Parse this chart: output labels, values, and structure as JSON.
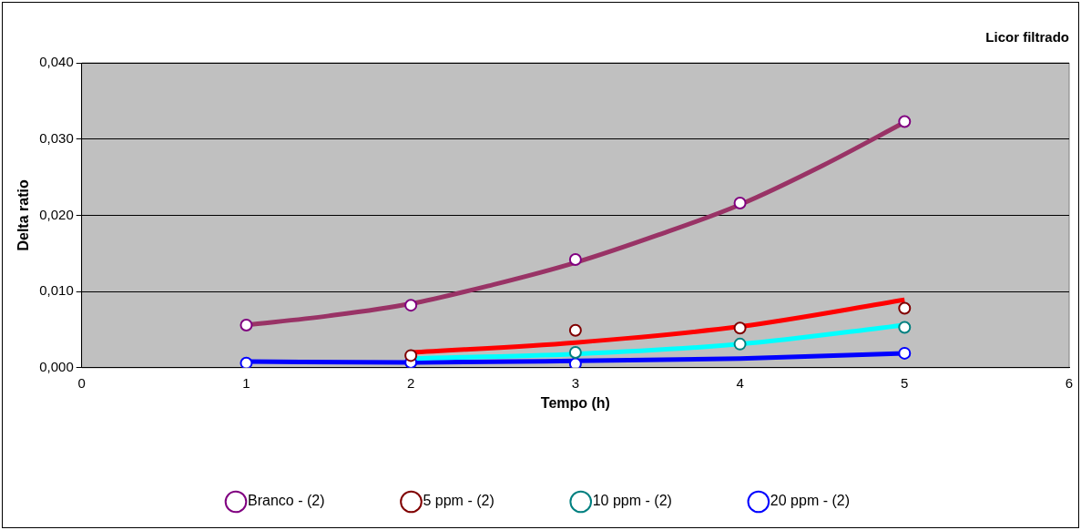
{
  "chart_data": {
    "type": "scatter",
    "title": "Licor filtrado",
    "xlabel": "Tempo (h)",
    "ylabel": "Delta ratio",
    "xlim": [
      0,
      6
    ],
    "xticks": [
      0,
      1,
      2,
      3,
      4,
      5,
      6
    ],
    "ylim": [
      0,
      0.04
    ],
    "yticks": [
      {
        "value": 0,
        "label": "0,000"
      },
      {
        "value": 0.01,
        "label": "0,010"
      },
      {
        "value": 0.02,
        "label": "0,020"
      },
      {
        "value": 0.03,
        "label": "0,030"
      },
      {
        "value": 0.04,
        "label": "0,040"
      }
    ],
    "grid": "y",
    "legend": "bottom",
    "marker": "circle",
    "series": [
      {
        "type": "line",
        "marker": "none",
        "color": "#993366",
        "x": [
          1,
          1.5,
          2,
          2.5,
          3,
          3.5,
          4,
          4.5,
          5
        ],
        "values": [
          0.0056,
          0.0068,
          0.0084,
          0.0109,
          0.0138,
          0.0174,
          0.0214,
          0.0265,
          0.0322
        ]
      },
      {
        "type": "line",
        "marker": "none",
        "color": "#ff0000",
        "x": [
          2,
          3,
          4,
          5
        ],
        "values": [
          0.002,
          0.0033,
          0.0054,
          0.0089
        ]
      },
      {
        "type": "line",
        "marker": "none",
        "color": "#00ffff",
        "x": [
          2,
          3,
          4,
          5
        ],
        "values": [
          0.0012,
          0.0018,
          0.0031,
          0.0056
        ]
      },
      {
        "type": "line",
        "marker": "none",
        "color": "#0000ff",
        "x": [
          1,
          2,
          3,
          4,
          5
        ],
        "values": [
          0.0008,
          0.0007,
          0.0009,
          0.0012,
          0.0019
        ]
      },
      {
        "name": "Branco - (2)",
        "color": "#800080",
        "x": [
          1,
          2,
          3,
          4,
          5
        ],
        "values": [
          0.0056,
          0.0082,
          0.0142,
          0.0216,
          0.0323
        ]
      },
      {
        "name": "5 ppm - (2)",
        "color": "#800000",
        "x": [
          2,
          3,
          4,
          5
        ],
        "values": [
          0.0016,
          0.0049,
          0.0052,
          0.0078
        ]
      },
      {
        "name": "10 ppm - (2)",
        "color": "#008080",
        "x": [
          3,
          4,
          5
        ],
        "values": [
          0.002,
          0.0031,
          0.0053
        ]
      },
      {
        "name": "20 ppm - (2)",
        "color": "#0000ff",
        "x": [
          1,
          2,
          3,
          4,
          5
        ],
        "values": [
          0.0006,
          0.0007,
          0.0005,
          null,
          0.0019
        ]
      }
    ]
  }
}
